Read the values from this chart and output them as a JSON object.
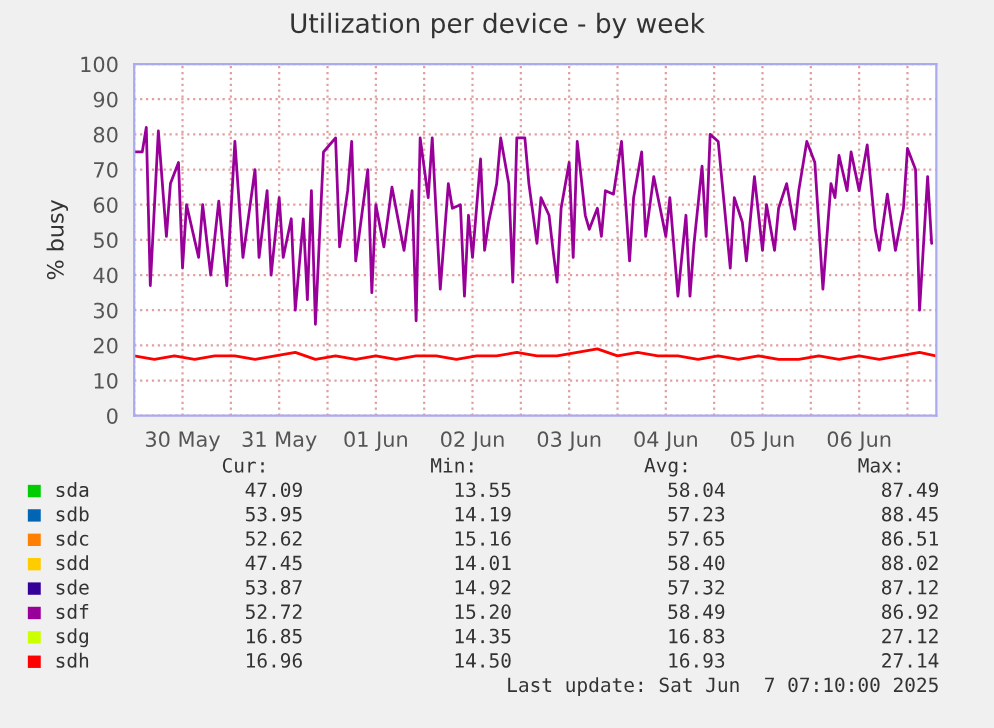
{
  "chart_data": {
    "type": "line",
    "title": "Utilization per device - by week",
    "ylabel": "% busy",
    "xlim": [
      "2025-05-30T00:00",
      "2025-06-07T07:10"
    ],
    "ylim": [
      0,
      100
    ],
    "yticks": [
      0,
      10,
      20,
      30,
      40,
      50,
      60,
      70,
      80,
      90,
      100
    ],
    "xticks": [
      {
        "value": "2025-05-30T00:00",
        "label": null
      },
      {
        "value": "2025-05-30T12:00",
        "label": "30 May"
      },
      {
        "value": "2025-05-31T00:00",
        "label": null
      },
      {
        "value": "2025-05-31T12:00",
        "label": "31 May"
      },
      {
        "value": "2025-06-01T00:00",
        "label": null
      },
      {
        "value": "2025-06-01T12:00",
        "label": "01 Jun"
      },
      {
        "value": "2025-06-02T00:00",
        "label": null
      },
      {
        "value": "2025-06-02T12:00",
        "label": "02 Jun"
      },
      {
        "value": "2025-06-03T00:00",
        "label": null
      },
      {
        "value": "2025-06-03T12:00",
        "label": "03 Jun"
      },
      {
        "value": "2025-06-04T00:00",
        "label": null
      },
      {
        "value": "2025-06-04T12:00",
        "label": "04 Jun"
      },
      {
        "value": "2025-06-05T00:00",
        "label": null
      },
      {
        "value": "2025-06-05T12:00",
        "label": "05 Jun"
      },
      {
        "value": "2025-06-06T00:00",
        "label": null
      },
      {
        "value": "2025-06-06T12:00",
        "label": "06 Jun"
      },
      {
        "value": "2025-06-07T00:00",
        "label": null
      }
    ],
    "grid": true,
    "legend": "bottom",
    "annotations": [
      "Cur:",
      "Min:",
      "Avg:",
      "Max:",
      "47.09",
      "13.55",
      "58.04",
      "87.49",
      "53.95",
      "14.19",
      "57.23",
      "88.45",
      "52.62",
      "15.16",
      "57.65",
      "86.51",
      "47.45",
      "14.01",
      "58.40",
      "88.02",
      "53.87",
      "14.92",
      "57.32",
      "87.12",
      "52.72",
      "15.20",
      "58.49",
      "86.92",
      "16.85",
      "14.35",
      "16.83",
      "27.12",
      "16.96",
      "14.50",
      "16.93",
      "27.14",
      "Last update: Sat Jun  7 07:10:00 2025"
    ],
    "series": [
      {
        "name": "sda",
        "color": "#00cc00"
      },
      {
        "name": "sdb",
        "color": "#0066b3"
      },
      {
        "name": "sdc",
        "color": "#ff8000"
      },
      {
        "name": "sdd",
        "color": "#ffcc00"
      },
      {
        "name": "sde",
        "color": "#330099"
      },
      {
        "name": "sdf",
        "color": "#990099",
        "x": [
          "2025-05-30T00:00",
          "2025-05-30T02:00",
          "2025-05-30T03:00",
          "2025-05-30T04:00",
          "2025-05-30T06:00",
          "2025-05-30T08:00",
          "2025-05-30T09:00",
          "2025-05-30T11:00",
          "2025-05-30T12:00",
          "2025-05-30T13:00",
          "2025-05-30T16:00",
          "2025-05-30T17:00",
          "2025-05-30T19:00",
          "2025-05-30T21:00",
          "2025-05-30T23:00",
          "2025-05-31T01:00",
          "2025-05-31T03:00",
          "2025-05-31T06:00",
          "2025-05-31T07:00",
          "2025-05-31T09:00",
          "2025-05-31T10:00",
          "2025-05-31T12:00",
          "2025-05-31T13:00",
          "2025-05-31T15:00",
          "2025-05-31T16:00",
          "2025-05-31T18:00",
          "2025-05-31T19:00",
          "2025-05-31T20:00",
          "2025-05-31T21:00",
          "2025-05-31T23:00",
          "2025-06-01T02:00",
          "2025-06-01T03:00",
          "2025-06-01T05:00",
          "2025-06-01T06:00",
          "2025-06-01T07:00",
          "2025-06-01T10:00",
          "2025-06-01T11:00",
          "2025-06-01T12:00",
          "2025-06-01T14:00",
          "2025-06-01T16:00",
          "2025-06-01T19:00",
          "2025-06-01T21:00",
          "2025-06-01T22:00",
          "2025-06-01T23:00",
          "2025-06-02T01:00",
          "2025-06-02T02:00",
          "2025-06-02T03:00",
          "2025-06-02T04:00",
          "2025-06-02T06:00",
          "2025-06-02T07:00",
          "2025-06-02T09:00",
          "2025-06-02T10:00",
          "2025-06-02T11:00",
          "2025-06-02T12:00",
          "2025-06-02T14:00",
          "2025-06-02T15:00",
          "2025-06-02T16:00",
          "2025-06-02T18:00",
          "2025-06-02T19:00",
          "2025-06-02T21:00",
          "2025-06-02T22:00",
          "2025-06-02T23:00",
          "2025-06-03T01:00",
          "2025-06-03T02:00",
          "2025-06-03T04:00",
          "2025-06-03T05:00",
          "2025-06-03T07:00",
          "2025-06-03T08:00",
          "2025-06-03T09:00",
          "2025-06-03T10:00",
          "2025-06-03T12:00",
          "2025-06-03T13:00",
          "2025-06-03T14:00",
          "2025-06-03T16:00",
          "2025-06-03T17:00",
          "2025-06-03T19:00",
          "2025-06-03T20:00",
          "2025-06-03T21:00",
          "2025-06-03T23:00",
          "2025-06-04T01:00",
          "2025-06-04T03:00",
          "2025-06-04T04:00",
          "2025-06-04T06:00",
          "2025-06-04T07:00",
          "2025-06-04T09:00",
          "2025-06-04T12:00",
          "2025-06-04T13:00",
          "2025-06-04T15:00",
          "2025-06-04T17:00",
          "2025-06-04T18:00",
          "2025-06-04T19:00",
          "2025-06-04T21:00",
          "2025-06-04T22:00",
          "2025-06-04T23:00",
          "2025-06-05T01:00",
          "2025-06-05T02:00",
          "2025-06-05T04:00",
          "2025-06-05T05:00",
          "2025-06-05T07:00",
          "2025-06-05T08:00",
          "2025-06-05T10:00",
          "2025-06-05T12:00",
          "2025-06-05T13:00",
          "2025-06-05T15:00",
          "2025-06-05T16:00",
          "2025-06-05T18:00",
          "2025-06-05T20:00",
          "2025-06-05T21:00",
          "2025-06-05T23:00",
          "2025-06-06T01:00",
          "2025-06-06T03:00",
          "2025-06-06T05:00",
          "2025-06-06T06:00",
          "2025-06-06T07:00",
          "2025-06-06T09:00",
          "2025-06-06T10:00",
          "2025-06-06T12:00",
          "2025-06-06T14:00",
          "2025-06-06T16:00",
          "2025-06-06T17:00",
          "2025-06-06T19:00",
          "2025-06-06T21:00",
          "2025-06-06T23:00",
          "2025-06-07T00:00",
          "2025-06-07T02:00",
          "2025-06-07T03:00",
          "2025-06-07T05:00",
          "2025-06-07T06:00"
        ],
        "values": [
          75,
          75,
          82,
          37,
          81,
          51,
          66,
          72,
          42,
          60,
          45,
          60,
          40,
          61,
          37,
          78,
          45,
          70,
          45,
          64,
          40,
          62,
          45,
          56,
          30,
          56,
          33,
          64,
          26,
          75,
          79,
          48,
          64,
          78,
          44,
          70,
          35,
          60,
          48,
          65,
          47,
          64,
          27,
          79,
          62,
          79,
          57,
          36,
          66,
          59,
          60,
          34,
          57,
          45,
          73,
          47,
          55,
          66,
          79,
          66,
          38,
          79,
          79,
          66,
          49,
          62,
          57,
          47,
          38,
          59,
          72,
          45,
          78,
          57,
          53,
          59,
          51,
          64,
          63,
          78,
          44,
          62,
          75,
          51,
          68,
          51,
          62,
          34,
          57,
          34,
          49,
          71,
          51,
          80,
          78,
          66,
          42,
          62,
          55,
          44,
          68,
          47,
          60,
          47,
          59,
          66,
          53,
          64,
          78,
          72,
          36,
          66,
          62,
          74,
          64,
          75,
          64,
          77,
          53,
          47,
          63,
          47,
          59,
          76,
          70,
          30,
          68,
          49
        ]
      },
      {
        "name": "sdg",
        "color": "#ccff00"
      },
      {
        "name": "sdh",
        "color": "#ff0000",
        "x": [
          "2025-05-30T00:00",
          "2025-05-30T05:00",
          "2025-05-30T10:00",
          "2025-05-30T15:00",
          "2025-05-30T20:00",
          "2025-05-31T01:00",
          "2025-05-31T06:00",
          "2025-05-31T11:00",
          "2025-05-31T16:00",
          "2025-05-31T21:00",
          "2025-06-01T02:00",
          "2025-06-01T07:00",
          "2025-06-01T12:00",
          "2025-06-01T17:00",
          "2025-06-01T22:00",
          "2025-06-02T03:00",
          "2025-06-02T08:00",
          "2025-06-02T13:00",
          "2025-06-02T18:00",
          "2025-06-02T23:00",
          "2025-06-03T04:00",
          "2025-06-03T09:00",
          "2025-06-03T14:00",
          "2025-06-03T19:00",
          "2025-06-04T00:00",
          "2025-06-04T05:00",
          "2025-06-04T10:00",
          "2025-06-04T15:00",
          "2025-06-04T20:00",
          "2025-06-05T01:00",
          "2025-06-05T06:00",
          "2025-06-05T11:00",
          "2025-06-05T16:00",
          "2025-06-05T21:00",
          "2025-06-06T02:00",
          "2025-06-06T07:00",
          "2025-06-06T12:00",
          "2025-06-06T17:00",
          "2025-06-06T22:00",
          "2025-06-07T03:00",
          "2025-06-07T07:00"
        ],
        "values": [
          17,
          16,
          17,
          16,
          17,
          17,
          16,
          17,
          18,
          16,
          17,
          16,
          17,
          16,
          17,
          17,
          16,
          17,
          17,
          18,
          17,
          17,
          18,
          19,
          17,
          18,
          17,
          17,
          16,
          17,
          16,
          17,
          16,
          16,
          17,
          16,
          17,
          16,
          17,
          18,
          17
        ]
      }
    ]
  }
}
